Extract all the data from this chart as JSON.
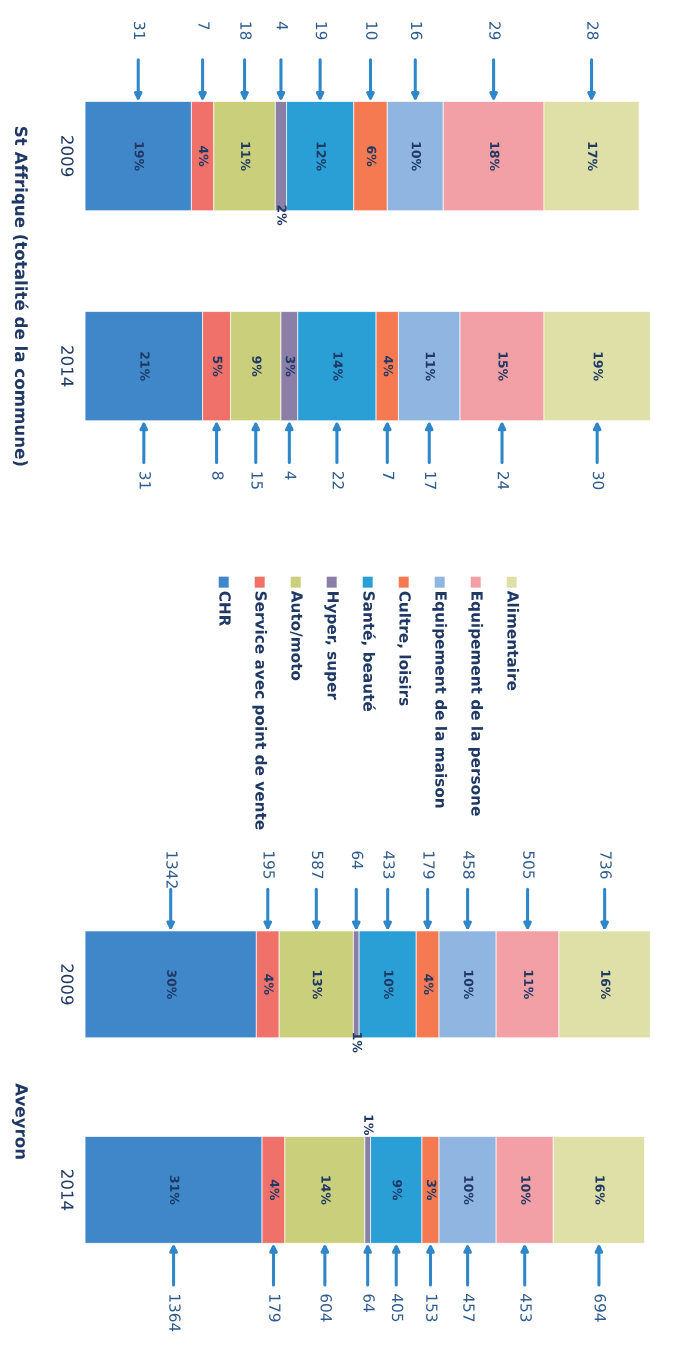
{
  "chart_data": [
    {
      "type": "bar",
      "title": "St Affrique (totalité de la commune)",
      "orientation": "horizontal",
      "stacked": true,
      "categories": [
        "2009",
        "2014"
      ],
      "tick_labels": "y",
      "legend": "bottom",
      "grid": false,
      "series": [
        {
          "name": "CHR",
          "color": "#3f87c9",
          "values": [
            19,
            21
          ],
          "value_labels": [
            "19%",
            "21%"
          ]
        },
        {
          "name": "Service avec point de vente",
          "color": "#f0706a",
          "values": [
            4,
            5
          ],
          "value_labels": [
            "4%",
            "5%"
          ]
        },
        {
          "name": "Auto/moto",
          "color": "#c9cf7a",
          "values": [
            11,
            9
          ],
          "value_labels": [
            "11%",
            "9%"
          ]
        },
        {
          "name": "Hyper, super",
          "color": "#8b7fa8",
          "values": [
            2,
            3
          ],
          "value_labels": [
            "2%",
            "3%"
          ]
        },
        {
          "name": "Santé, beauté",
          "color": "#2a9fd6",
          "values": [
            12,
            14
          ],
          "value_labels": [
            "12%",
            "14%"
          ]
        },
        {
          "name": "Cultre, loisirs",
          "color": "#f57a52",
          "values": [
            6,
            4
          ],
          "value_labels": [
            "6%",
            "4%"
          ]
        },
        {
          "name": "Equipement de la maison",
          "color": "#8fb5e0",
          "values": [
            10,
            11
          ],
          "value_labels": [
            "10%",
            "11%"
          ]
        },
        {
          "name": "Equipement de la persone",
          "color": "#f2a0a5",
          "values": [
            18,
            15
          ],
          "value_labels": [
            "18%",
            "15%"
          ]
        },
        {
          "name": "Alimentaire",
          "color": "#dfe0a8",
          "values": [
            17,
            19
          ],
          "value_labels": [
            "17%",
            "19%"
          ]
        }
      ],
      "annotations": [
        "31",
        "7",
        "18",
        "4",
        "19",
        "10",
        "16",
        "29",
        "28",
        "31",
        "8",
        "15",
        "4",
        "22",
        "7",
        "17",
        "24",
        "30"
      ]
    },
    {
      "type": "bar",
      "title": "Aveyron",
      "orientation": "horizontal",
      "stacked": true,
      "categories": [
        "2009",
        "2014"
      ],
      "tick_labels": "y",
      "grid": false,
      "series": [
        {
          "color": "#3f87c9",
          "values": [
            30,
            31
          ],
          "value_labels": [
            "30%",
            "31%"
          ]
        },
        {
          "color": "#f0706a",
          "values": [
            4,
            4
          ],
          "value_labels": [
            "4%",
            "4%"
          ]
        },
        {
          "color": "#c9cf7a",
          "values": [
            13,
            14
          ],
          "value_labels": [
            "13%",
            "14%"
          ]
        },
        {
          "color": "#8b7fa8",
          "values": [
            1,
            1
          ],
          "value_labels": [
            "1%",
            "1%"
          ]
        },
        {
          "color": "#2a9fd6",
          "values": [
            10,
            9
          ],
          "value_labels": [
            "10%",
            "9%"
          ]
        },
        {
          "color": "#f57a52",
          "values": [
            4,
            3
          ],
          "value_labels": [
            "4%",
            "3%"
          ]
        },
        {
          "color": "#8fb5e0",
          "values": [
            10,
            10
          ],
          "value_labels": [
            "10%",
            "10%"
          ]
        },
        {
          "color": "#f2a0a5",
          "values": [
            11,
            10
          ],
          "value_labels": [
            "11%",
            "10%"
          ]
        },
        {
          "color": "#dfe0a8",
          "values": [
            16,
            16
          ],
          "value_labels": [
            "16%",
            "16%"
          ]
        }
      ],
      "annotations": [
        "1342",
        "195",
        "587",
        "64",
        "433",
        "179",
        "458",
        "505",
        "736",
        "1364",
        "179",
        "604",
        "64",
        "405",
        "153",
        "457",
        "453",
        "694"
      ]
    }
  ]
}
